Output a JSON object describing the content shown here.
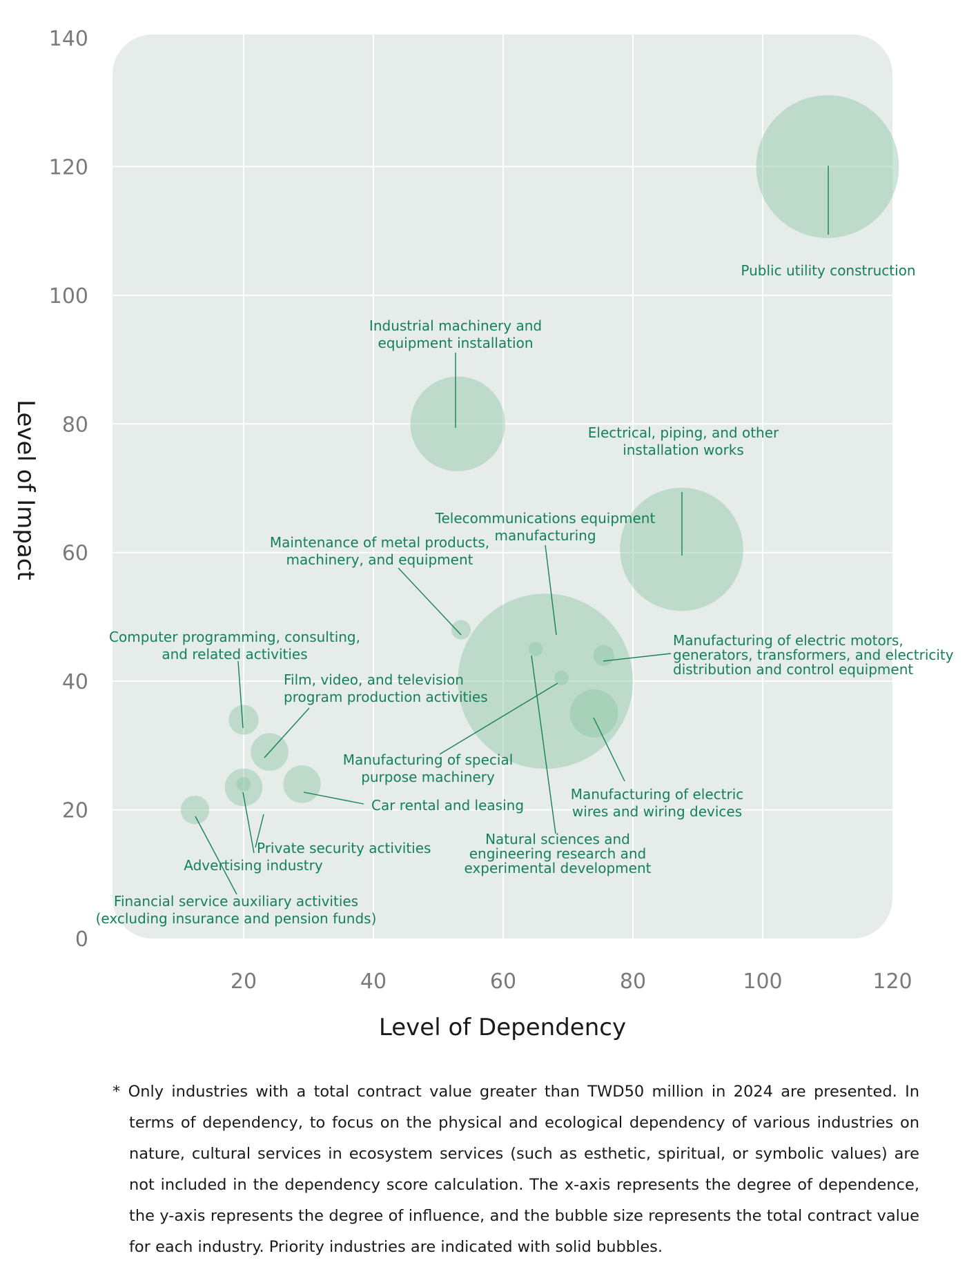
{
  "chart_data": {
    "type": "scatter",
    "xlabel": "Level of Dependency",
    "ylabel": "Level of Impact",
    "xlim": [
      0,
      120
    ],
    "ylim": [
      0,
      140
    ],
    "x_ticks": [
      20,
      40,
      60,
      80,
      100,
      120
    ],
    "y_ticks": [
      0,
      20,
      40,
      60,
      80,
      100,
      120,
      140
    ],
    "grid": true,
    "bubble_color": "#8cc5a3",
    "label_color": "#14805a",
    "points": [
      {
        "label": "Public utility construction",
        "x": 110,
        "y": 120,
        "size": 11
      },
      {
        "label": "Industrial machinery and\nequipment installation",
        "x": 53,
        "y": 80,
        "size": 7.3
      },
      {
        "label": "Electrical, piping, and other\ninstallation works",
        "x": 87.5,
        "y": 60.5,
        "size": 9.5
      },
      {
        "label": "Telecommunications equipment\nmanufacturing",
        "x": 66.5,
        "y": 40,
        "size": 13.5
      },
      {
        "label": "Maintenance of metal products,\nmachinery, and equipment",
        "x": 53.5,
        "y": 48,
        "size": 1.5
      },
      {
        "label": "Manufacturing of electric motors,\ngenerators, transformers, and electricity\ndistribution and control equipment",
        "x": 75.5,
        "y": 44,
        "size": 1.6
      },
      {
        "label": "Manufacturing of special\npurpose machinery",
        "x": 69,
        "y": 40.5,
        "size": 1.1
      },
      {
        "label": "Natural sciences and\nengineering research and\nexperimental development",
        "x": 65,
        "y": 45,
        "size": 1.1
      },
      {
        "label": "Manufacturing of electric\nwires and wiring devices",
        "x": 74,
        "y": 35,
        "size": 3.7
      },
      {
        "label": "Computer programming, consulting,\nand related activities",
        "x": 20,
        "y": 34,
        "size": 2.3
      },
      {
        "label": "Film, video, and television\nprogram production activities",
        "x": 24,
        "y": 29,
        "size": 2.9
      },
      {
        "label": "Car rental and leasing",
        "x": 29,
        "y": 24,
        "size": 2.9
      },
      {
        "label": "Private security activities",
        "x": 20,
        "y": 23.5,
        "size": 2.9
      },
      {
        "label": "Advertising industry",
        "x": 20,
        "y": 24,
        "size": 1.1
      },
      {
        "label": "Financial service auxiliary activities\n(excluding insurance and pension funds)",
        "x": 12.5,
        "y": 20,
        "size": 2.2
      }
    ]
  },
  "footnote": "* Only industries with a total contract value greater than TWD50 million in 2024 are presented. In terms of dependency, to focus on the physical and ecological dependency of various industries on nature, cultural services in ecosystem services (such as esthetic, spiritual, or symbolic values) are not included in the dependency score calculation. The x-axis represents the degree of dependence, the y-axis represents the degree of influence, and the bubble size represents the total contract value for each industry. Priority industries are indicated with solid bubbles."
}
